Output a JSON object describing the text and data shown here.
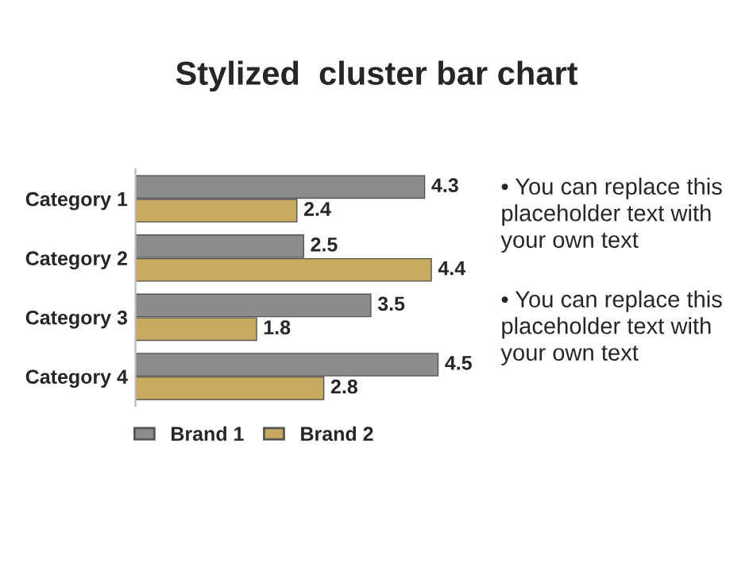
{
  "chart_data": {
    "type": "bar",
    "orientation": "horizontal",
    "title": "Stylized  cluster bar chart",
    "categories": [
      "Category 1",
      "Category 2",
      "Category 3",
      "Category 4"
    ],
    "series": [
      {
        "name": "Brand 1",
        "color": "#8c8c8c",
        "values": [
          4.3,
          2.5,
          3.5,
          4.5
        ]
      },
      {
        "name": "Brand 2",
        "color": "#c9a85f",
        "values": [
          2.4,
          4.4,
          1.8,
          2.8
        ]
      }
    ],
    "data_labels": true,
    "tick_labels": "y",
    "grid": false,
    "legend": "bottom",
    "annotations": [
      "• You can replace this placeholder text with your own text",
      "• You can replace this placeholder text with your own text"
    ]
  }
}
